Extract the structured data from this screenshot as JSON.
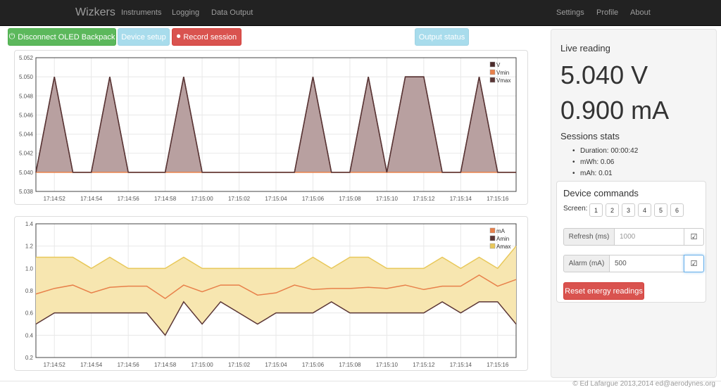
{
  "navbar": {
    "brand": "Wizkers",
    "left_links": [
      "Instruments",
      "Logging",
      "Data Output"
    ],
    "right_links": [
      "Settings",
      "Profile",
      "About"
    ]
  },
  "toolbar": {
    "disconnect_label": "Disconnect OLED Backpack",
    "device_setup_label": "Device setup",
    "record_label": "Record session",
    "output_status_label": "Output status"
  },
  "voltage_chart": {
    "type": "area",
    "x": [
      "17:14:51",
      "17:14:52",
      "17:14:53",
      "17:14:54",
      "17:14:55",
      "17:14:56",
      "17:14:57",
      "17:14:58",
      "17:14:59",
      "17:15:00",
      "17:15:01",
      "17:15:02",
      "17:15:03",
      "17:15:04",
      "17:15:05",
      "17:15:06",
      "17:15:07",
      "17:15:08",
      "17:15:09",
      "17:15:10",
      "17:15:11",
      "17:15:12",
      "17:15:13",
      "17:15:14",
      "17:15:15",
      "17:15:16",
      "17:15:17"
    ],
    "tick_labels": [
      "17:14:52",
      "17:14:54",
      "17:14:56",
      "17:14:58",
      "17:15:00",
      "17:15:02",
      "17:15:04",
      "17:15:06",
      "17:15:08",
      "17:15:10",
      "17:15:12",
      "17:15:14",
      "17:15:16"
    ],
    "y_ticks": [
      "5.052",
      "5.050",
      "5.048",
      "5.046",
      "5.044",
      "5.042",
      "5.040",
      "5.038"
    ],
    "ylim": [
      5.038,
      5.052
    ],
    "series": [
      {
        "name": "V",
        "values": [
          5.04,
          5.05,
          5.04,
          5.04,
          5.05,
          5.04,
          5.04,
          5.04,
          5.05,
          5.04,
          5.04,
          5.04,
          5.04,
          5.04,
          5.04,
          5.05,
          5.04,
          5.04,
          5.05,
          5.04,
          5.05,
          5.05,
          5.04,
          5.04,
          5.05,
          5.04,
          5.04
        ]
      },
      {
        "name": "Vmin",
        "values": [
          5.04,
          5.04,
          5.04,
          5.04,
          5.04,
          5.04,
          5.04,
          5.04,
          5.04,
          5.04,
          5.04,
          5.04,
          5.04,
          5.04,
          5.04,
          5.04,
          5.04,
          5.04,
          5.04,
          5.04,
          5.04,
          5.04,
          5.04,
          5.04,
          5.04,
          5.04,
          5.04
        ]
      },
      {
        "name": "Vmax",
        "values": [
          5.04,
          5.05,
          5.04,
          5.04,
          5.05,
          5.04,
          5.04,
          5.04,
          5.05,
          5.04,
          5.04,
          5.04,
          5.04,
          5.04,
          5.04,
          5.05,
          5.04,
          5.04,
          5.05,
          5.04,
          5.05,
          5.05,
          5.04,
          5.04,
          5.05,
          5.04,
          5.04
        ]
      }
    ],
    "colors": {
      "V": "#4a2a2a",
      "Vmin": "#e8804a",
      "Vmax": "#5a3535",
      "fill": "#b8a0a0"
    }
  },
  "current_chart": {
    "type": "area",
    "x": [
      "17:14:51",
      "17:14:52",
      "17:14:53",
      "17:14:54",
      "17:14:55",
      "17:14:56",
      "17:14:57",
      "17:14:58",
      "17:14:59",
      "17:15:00",
      "17:15:01",
      "17:15:02",
      "17:15:03",
      "17:15:04",
      "17:15:05",
      "17:15:06",
      "17:15:07",
      "17:15:08",
      "17:15:09",
      "17:15:10",
      "17:15:11",
      "17:15:12",
      "17:15:13",
      "17:15:14",
      "17:15:15",
      "17:15:16",
      "17:15:17"
    ],
    "tick_labels": [
      "17:14:52",
      "17:14:54",
      "17:14:56",
      "17:14:58",
      "17:15:00",
      "17:15:02",
      "17:15:04",
      "17:15:06",
      "17:15:08",
      "17:15:10",
      "17:15:12",
      "17:15:14",
      "17:15:16"
    ],
    "y_ticks": [
      "1.4",
      "1.2",
      "1.0",
      "0.8",
      "0.6",
      "0.4",
      "0.2"
    ],
    "ylim": [
      0.2,
      1.4
    ],
    "series": [
      {
        "name": "mA",
        "values": [
          0.77,
          0.82,
          0.85,
          0.78,
          0.83,
          0.84,
          0.84,
          0.73,
          0.85,
          0.79,
          0.85,
          0.85,
          0.76,
          0.78,
          0.85,
          0.81,
          0.82,
          0.82,
          0.83,
          0.82,
          0.85,
          0.81,
          0.84,
          0.84,
          0.94,
          0.84,
          0.9
        ]
      },
      {
        "name": "Amin",
        "values": [
          0.5,
          0.6,
          0.6,
          0.6,
          0.6,
          0.6,
          0.6,
          0.4,
          0.7,
          0.5,
          0.7,
          0.6,
          0.5,
          0.6,
          0.6,
          0.6,
          0.7,
          0.6,
          0.6,
          0.6,
          0.6,
          0.6,
          0.7,
          0.6,
          0.7,
          0.7,
          0.5
        ]
      },
      {
        "name": "Amax",
        "values": [
          1.1,
          1.1,
          1.1,
          1.0,
          1.1,
          1.0,
          1.0,
          1.0,
          1.1,
          1.0,
          1.0,
          1.0,
          1.0,
          1.0,
          1.0,
          1.1,
          1.0,
          1.1,
          1.1,
          1.0,
          1.0,
          1.0,
          1.1,
          1.0,
          1.1,
          1.0,
          1.2
        ]
      }
    ],
    "colors": {
      "mA": "#e8804a",
      "Amin": "#5a3535",
      "Amax": "#e8c85a",
      "fill": "#f7e6b0"
    }
  },
  "live": {
    "heading": "Live reading",
    "voltage": "5.040 V",
    "current": "0.900 mA"
  },
  "stats": {
    "heading": "Sessions stats",
    "items": [
      "Duration: 00:00:42",
      "mWh: 0.06",
      "mAh: 0.01"
    ]
  },
  "commands": {
    "heading": "Device commands",
    "screen_label": "Screen:",
    "screens": [
      "1",
      "2",
      "3",
      "4",
      "5",
      "6"
    ],
    "refresh_label": "Refresh (ms)",
    "refresh_placeholder": "1000",
    "alarm_label": "Alarm (mA)",
    "alarm_value": "500",
    "reset_label": "Reset energy readings"
  },
  "footer": "© Ed Lafargue 2013,2014 ed@aerodynes.org"
}
